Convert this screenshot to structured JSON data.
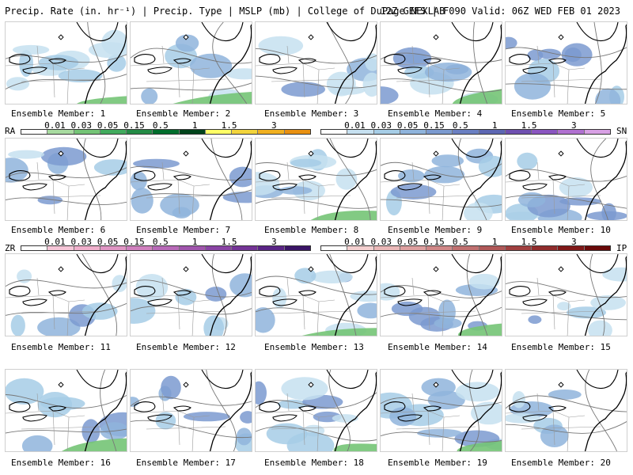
{
  "header": {
    "left": "Precip. Rate (in. hr⁻¹) | Precip. Type | MSLP (mb) | College of DuPage NEXLAB",
    "right": "12Z GEFS | F090 Valid: 06Z WED FEB 01 2023"
  },
  "members": [
    "Ensemble Member: 1",
    "Ensemble Member: 2",
    "Ensemble Member: 3",
    "Ensemble Member: 4",
    "Ensemble Member: 5",
    "Ensemble Member: 6",
    "Ensemble Member: 7",
    "Ensemble Member: 8",
    "Ensemble Member: 9",
    "Ensemble Member: 10",
    "Ensemble Member: 11",
    "Ensemble Member: 12",
    "Ensemble Member: 13",
    "Ensemble Member: 14",
    "Ensemble Member: 15",
    "Ensemble Member: 16",
    "Ensemble Member: 17",
    "Ensemble Member: 18",
    "Ensemble Member: 19",
    "Ensemble Member: 20"
  ],
  "legend": {
    "ra": {
      "code": "RA",
      "ticks": [
        "0.01",
        "0.03",
        "0.05",
        "0.15",
        "0.5",
        "1",
        "1.5",
        "3"
      ],
      "colors": [
        "#ffffff",
        "#a8dba0",
        "#74c476",
        "#41ab5d",
        "#238b45",
        "#006d2c",
        "#00441b",
        "#ffff66",
        "#f2d43c",
        "#f0b020",
        "#e89010"
      ]
    },
    "sn": {
      "code": "SN",
      "ticks": [
        "0.01",
        "0.03",
        "0.05",
        "0.15",
        "0.5",
        "1",
        "1.5",
        "3"
      ],
      "colors": [
        "#ffffff",
        "#c6e0f0",
        "#a6cde6",
        "#8fb4dc",
        "#7b9ad0",
        "#6a7fc2",
        "#5c66b3",
        "#6e4fb0",
        "#8a55c0",
        "#b070d0",
        "#d8a0e4"
      ]
    },
    "zr": {
      "code": "ZR",
      "ticks": [
        "0.01",
        "0.03",
        "0.05",
        "0.15",
        "0.5",
        "1",
        "1.5",
        "3"
      ],
      "colors": [
        "#ffffff",
        "#f6c6d8",
        "#f0b0cc",
        "#e096c4",
        "#d080be",
        "#b86ab8",
        "#a055ad",
        "#8a44a4",
        "#743496",
        "#5a2486",
        "#3a1466"
      ]
    },
    "ip": {
      "code": "IP",
      "ticks": [
        "0.01",
        "0.03",
        "0.05",
        "0.15",
        "0.5",
        "1",
        "1.5",
        "3"
      ],
      "colors": [
        "#ffffff",
        "#f4d0d0",
        "#eab8b8",
        "#dea0a0",
        "#d08888",
        "#c07070",
        "#b05858",
        "#a04040",
        "#902c2c",
        "#801818",
        "#6a0a0a"
      ]
    }
  }
}
